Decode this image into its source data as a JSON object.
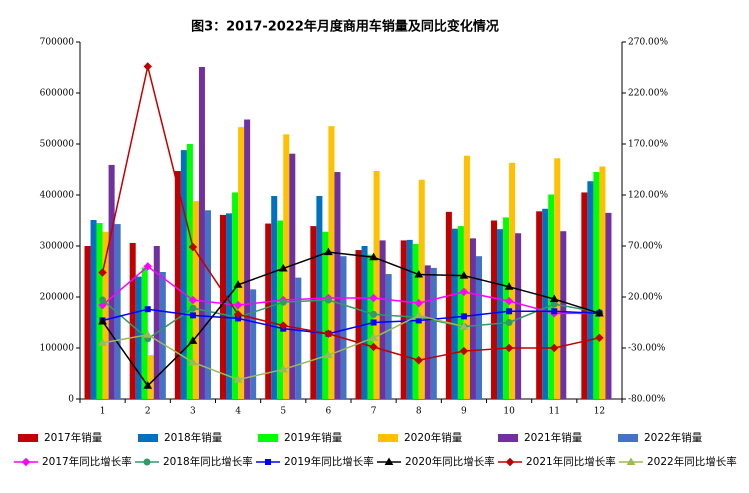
{
  "chart_data": {
    "type": "bar",
    "title": "图3：2017-2022年月度商用车销量及同比变化情况",
    "categories": [
      "1",
      "2",
      "3",
      "4",
      "5",
      "6",
      "7",
      "8",
      "9",
      "10",
      "11",
      "12"
    ],
    "ylim": [
      0,
      700000
    ],
    "yticks": [
      0,
      100000,
      200000,
      300000,
      400000,
      500000,
      600000,
      700000
    ],
    "y2lim": [
      -80,
      270
    ],
    "y2ticks": [
      {
        "value": -80,
        "label": "-80.00%"
      },
      {
        "value": -30,
        "label": "-30.00%"
      },
      {
        "value": 20,
        "label": "20.00%"
      },
      {
        "value": 70,
        "label": "70.00%"
      },
      {
        "value": 120,
        "label": "120.00%"
      },
      {
        "value": 170,
        "label": "170.00%"
      },
      {
        "value": 220,
        "label": "220.00%"
      },
      {
        "value": 270,
        "label": "270.00%"
      }
    ],
    "series": [
      {
        "name": "2017年销量",
        "type": "bar",
        "color": "#c00000",
        "values": [
          300000,
          306000,
          447000,
          361000,
          344000,
          339000,
          292000,
          311000,
          367000,
          350000,
          368000,
          405000
        ]
      },
      {
        "name": "2018年销量",
        "type": "bar",
        "color": "#0070c0",
        "values": [
          351000,
          240000,
          488000,
          364000,
          398000,
          398000,
          300000,
          312000,
          334000,
          333000,
          373000,
          427000
        ]
      },
      {
        "name": "2019年销量",
        "type": "bar",
        "color": "#00ff00",
        "values": [
          345000,
          258000,
          500000,
          405000,
          350000,
          328000,
          283000,
          304000,
          339000,
          356000,
          401000,
          445000
        ]
      },
      {
        "name": "2020年销量",
        "type": "bar",
        "color": "#ffc000",
        "values": [
          328000,
          86000,
          388000,
          533000,
          519000,
          535000,
          447000,
          430000,
          477000,
          463000,
          472000,
          456000
        ]
      },
      {
        "name": "2021年销量",
        "type": "bar",
        "color": "#7030a0",
        "values": [
          459000,
          300000,
          651000,
          548000,
          481000,
          445000,
          311000,
          262000,
          315000,
          325000,
          329000,
          365000
        ]
      },
      {
        "name": "2022年销量",
        "type": "bar",
        "color": "#4472c4",
        "values": [
          343000,
          249000,
          370000,
          215000,
          238000,
          280000,
          245000,
          257000,
          280000,
          null,
          null,
          null
        ]
      },
      {
        "name": "2017年同比增长率",
        "type": "line",
        "axis": "y2",
        "marker": "diamond",
        "color": "#ff00ff",
        "values": [
          12,
          50,
          17,
          12,
          17,
          19,
          19,
          14,
          25,
          16,
          4,
          4
        ]
      },
      {
        "name": "2018年同比增长率",
        "type": "line",
        "axis": "y2",
        "marker": "circle",
        "color": "#339966",
        "values": [
          17,
          -21,
          9,
          0,
          15,
          17,
          3,
          0,
          -9,
          -5,
          13,
          5
        ]
      },
      {
        "name": "2019年同比增长率",
        "type": "line",
        "axis": "y2",
        "marker": "square",
        "color": "#0000ff",
        "values": [
          -3,
          8,
          2,
          -1,
          -11,
          -16,
          -5,
          -3,
          1,
          6,
          6,
          4
        ]
      },
      {
        "name": "2020年同比增长率",
        "type": "line",
        "axis": "y2",
        "marker": "triangle",
        "color": "#000000",
        "values": [
          -4,
          -67,
          -23,
          32,
          48,
          64,
          59,
          42,
          41,
          30,
          18,
          4
        ]
      },
      {
        "name": "2021年同比增长率",
        "type": "line",
        "axis": "y2",
        "marker": "diamond",
        "color": "#c00000",
        "values": [
          44,
          246,
          69,
          3,
          -8,
          -16,
          -29,
          -42,
          -33,
          -30,
          -30,
          -20
        ]
      },
      {
        "name": "2022年同比增长率",
        "type": "line",
        "axis": "y2",
        "marker": "triangle",
        "color": "#9bbb59",
        "values": [
          -25,
          -17,
          -44,
          -61,
          -51,
          -37,
          -20,
          2,
          -9,
          null,
          null,
          null
        ]
      }
    ]
  }
}
